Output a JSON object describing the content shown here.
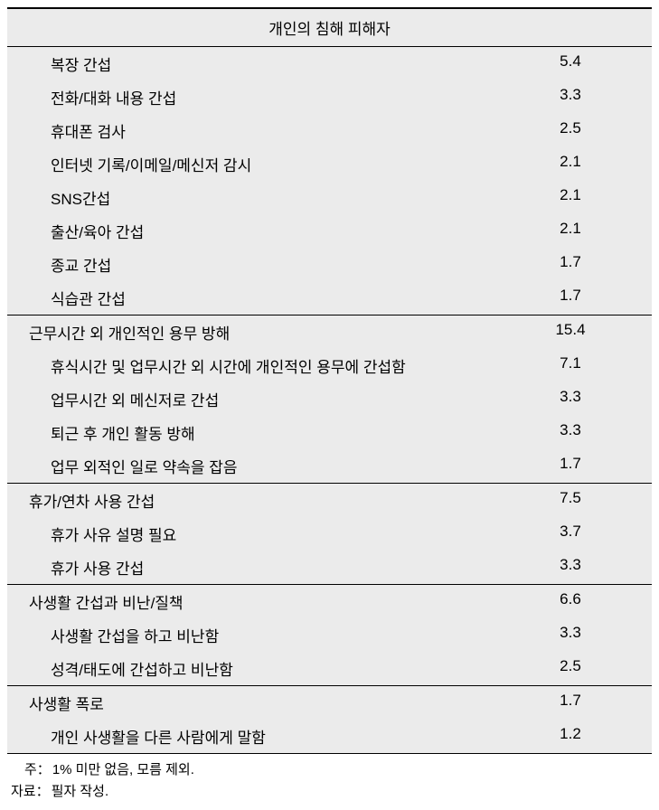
{
  "table": {
    "header": "개인의 침해 피해자",
    "background_color": "#ebebeb",
    "border_color": "#000000",
    "font_size": 17,
    "sections": [
      {
        "items": [
          {
            "label": "복장 간섭",
            "value": "5.4"
          },
          {
            "label": "전화/대화 내용 간섭",
            "value": "3.3"
          },
          {
            "label": "휴대폰 검사",
            "value": "2.5"
          },
          {
            "label": "인터넷 기록/이메일/메신저 감시",
            "value": "2.1"
          },
          {
            "label": "SNS간섭",
            "value": "2.1"
          },
          {
            "label": "출산/육아 간섭",
            "value": "2.1"
          },
          {
            "label": "종교 간섭",
            "value": "1.7"
          },
          {
            "label": "식습관 간섭",
            "value": "1.7"
          }
        ]
      },
      {
        "header": {
          "label": "근무시간 외 개인적인 용무 방해",
          "value": "15.4"
        },
        "items": [
          {
            "label": "휴식시간 및 업무시간 외 시간에 개인적인 용무에 간섭함",
            "value": "7.1"
          },
          {
            "label": "업무시간 외 메신저로 간섭",
            "value": "3.3"
          },
          {
            "label": "퇴근 후 개인 활동 방해",
            "value": "3.3"
          },
          {
            "label": "업무 외적인 일로 약속을 잡음",
            "value": "1.7"
          }
        ]
      },
      {
        "header": {
          "label": "휴가/연차 사용 간섭",
          "value": "7.5"
        },
        "items": [
          {
            "label": "휴가 사유 설명 필요",
            "value": "3.7"
          },
          {
            "label": "휴가 사용 간섭",
            "value": "3.3"
          }
        ]
      },
      {
        "header": {
          "label": "사생활 간섭과 비난/질책",
          "value": "6.6"
        },
        "items": [
          {
            "label": "사생활 간섭을 하고 비난함",
            "value": "3.3"
          },
          {
            "label": "성격/태도에 간섭하고 비난함",
            "value": "2.5"
          }
        ]
      },
      {
        "header": {
          "label": "사생활 폭로",
          "value": "1.7"
        },
        "items": [
          {
            "label": "개인 사생활을 다른 사람에게 말함",
            "value": "1.2"
          }
        ]
      }
    ]
  },
  "footnotes": {
    "note1_label": "　주：",
    "note1_text": "1% 미만 없음, 모름 제외.",
    "note2_label": "자료：",
    "note2_text": "필자 작성."
  }
}
